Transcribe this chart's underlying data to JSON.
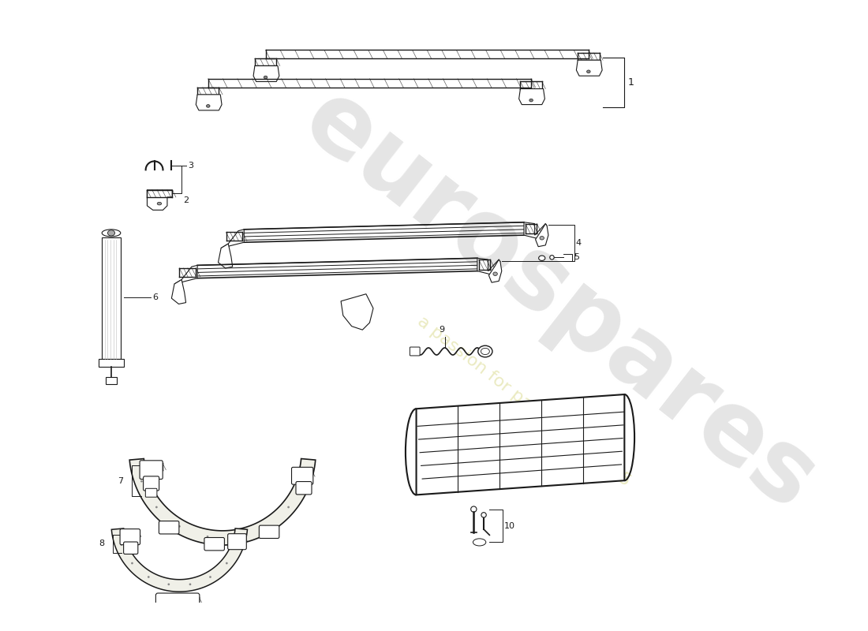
{
  "background_color": "#ffffff",
  "line_color": "#1a1a1a",
  "watermark_main": "eurospares",
  "watermark_sub": "a passion for parts since 1985",
  "wm_color1": "#cccccc",
  "wm_color2": "#e8e8b0",
  "label_fontsize": 8,
  "part_labels": [
    "1",
    "2",
    "3",
    "4",
    "5",
    "6",
    "7",
    "8",
    "9",
    "10"
  ]
}
